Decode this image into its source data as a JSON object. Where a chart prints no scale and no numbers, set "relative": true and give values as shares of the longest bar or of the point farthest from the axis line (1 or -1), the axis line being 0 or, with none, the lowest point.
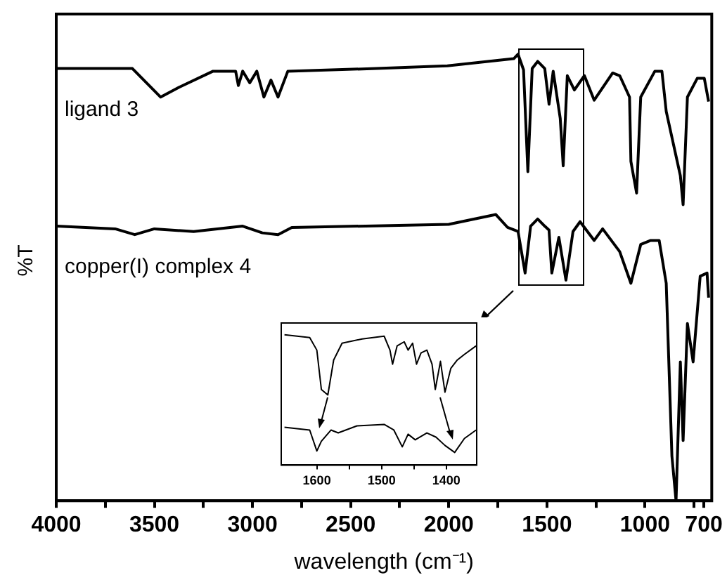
{
  "chart_data": [
    {
      "type": "line",
      "xlabel": "wavelength (cm⁻¹)",
      "ylabel": "%T",
      "relative": true,
      "tick_labels": "x",
      "marker": "none",
      "xlim": [
        4000,
        660
      ],
      "xticks": [
        4000,
        {
          "value": 3750,
          "label": null
        },
        3500,
        {
          "value": 3250,
          "label": null
        },
        3000,
        {
          "value": 2750,
          "label": null
        },
        2500,
        {
          "value": 2250,
          "label": null
        },
        2000,
        {
          "value": 1750,
          "label": null
        },
        1500,
        {
          "value": 1250,
          "label": null
        },
        1000,
        {
          "value": 750,
          "label": null
        },
        700
      ],
      "series": [
        {
          "name": "ligand 3",
          "color": "#000000",
          "x": [
            4000,
            3612,
            3468,
            3374,
            3201,
            3086,
            3072,
            3050,
            3014,
            2978,
            2942,
            2906,
            2870,
            2820,
            2367,
            2007,
            1669,
            1647,
            1619,
            1597,
            1575,
            1547,
            1511,
            1489,
            1468,
            1432,
            1417,
            1396,
            1360,
            1309,
            1259,
            1165,
            1129,
            1079,
            1072,
            1043,
            1022,
            950,
            914,
            892,
            820,
            806,
            784,
            734,
            698,
            676
          ],
          "values": [
            0.968,
            0.968,
            0.904,
            0.926,
            0.962,
            0.962,
            0.93,
            0.962,
            0.936,
            0.962,
            0.904,
            0.942,
            0.904,
            0.962,
            0.968,
            0.974,
            0.99,
            1,
            0.965,
            0.737,
            0.968,
            0.984,
            0.968,
            0.888,
            0.962,
            0.856,
            0.75,
            0.952,
            0.92,
            0.952,
            0.897,
            0.958,
            0.952,
            0.904,
            0.76,
            0.689,
            0.904,
            0.962,
            0.962,
            0.872,
            0.728,
            0.663,
            0.904,
            0.946,
            0.946,
            0.894
          ]
        },
        {
          "name": "copper(I) complex 4",
          "color": "#000000",
          "x": [
            4000,
            3700,
            3600,
            3500,
            3300,
            3050,
            2950,
            2870,
            2800,
            2000,
            1760,
            1700,
            1647,
            1611,
            1583,
            1547,
            1511,
            1489,
            1475,
            1439,
            1403,
            1367,
            1331,
            1259,
            1216,
            1129,
            1072,
            1022,
            971,
            928,
            892,
            863,
            842,
            820,
            806,
            784,
            755,
            719,
            684,
            676
          ],
          "values": [
            0.615,
            0.609,
            0.596,
            0.609,
            0.603,
            0.615,
            0.6,
            0.596,
            0.612,
            0.619,
            0.641,
            0.612,
            0.603,
            0.51,
            0.615,
            0.631,
            0.615,
            0.606,
            0.51,
            0.59,
            0.494,
            0.603,
            0.625,
            0.583,
            0.609,
            0.558,
            0.487,
            0.574,
            0.583,
            0.583,
            0.487,
            0.1,
            0,
            0.311,
            0.135,
            0.397,
            0.311,
            0.503,
            0.51,
            0.455
          ]
        }
      ]
    },
    {
      "type": "line",
      "relative": true,
      "tick_labels": "x",
      "marker": "none",
      "xlim": [
        1655,
        1353
      ],
      "xticks": [
        1600,
        {
          "value": 1550,
          "label": null
        },
        1500,
        {
          "value": 1450,
          "label": null
        },
        1400
      ],
      "series": [
        {
          "color": "#000000",
          "x": [
            1650,
            1611,
            1600,
            1593,
            1583,
            1574,
            1561,
            1530,
            1496,
            1487,
            1483,
            1476,
            1465,
            1459,
            1452,
            1446,
            1439,
            1430,
            1422,
            1417,
            1409,
            1402,
            1393,
            1383,
            1372,
            1354
          ],
          "values": [
            1,
            0.978,
            0.882,
            0.58,
            0.538,
            0.806,
            0.935,
            0.968,
            0.989,
            0.882,
            0.774,
            0.914,
            0.946,
            0.882,
            0.935,
            0.774,
            0.86,
            0.882,
            0.774,
            0.58,
            0.796,
            0.559,
            0.742,
            0.806,
            0.849,
            0.914
          ]
        },
        {
          "color": "#000000",
          "x": [
            1650,
            1611,
            1600,
            1593,
            1578,
            1567,
            1538,
            1496,
            1481,
            1468,
            1459,
            1448,
            1430,
            1416,
            1402,
            1387,
            1372,
            1354
          ],
          "values": [
            0.29,
            0.269,
            0.108,
            0.183,
            0.269,
            0.247,
            0.301,
            0.312,
            0.269,
            0.14,
            0.237,
            0.194,
            0.247,
            0.215,
            0.151,
            0.097,
            0.204,
            0.269
          ]
        }
      ]
    }
  ]
}
